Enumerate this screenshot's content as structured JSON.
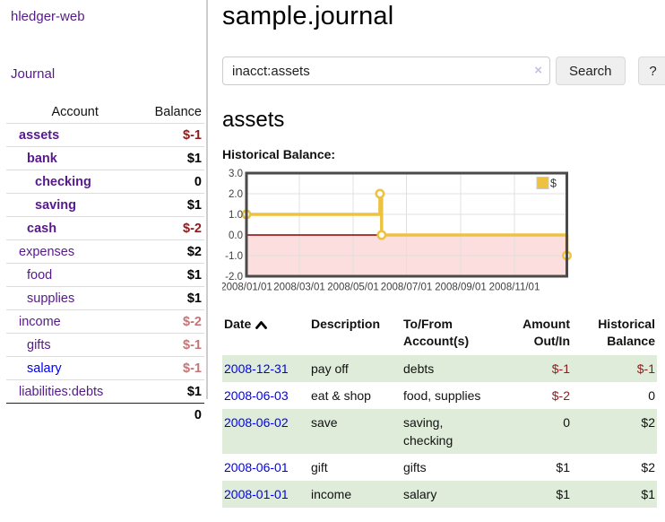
{
  "sidebar": {
    "app_title": "hledger-web",
    "nav_journal": "Journal",
    "accounts": {
      "col_account": "Account",
      "col_balance": "Balance",
      "rows": [
        {
          "name": "assets",
          "balance": "$-1",
          "level": 0,
          "bold": true,
          "balance_style": "negative"
        },
        {
          "name": "bank",
          "balance": "$1",
          "level": 1,
          "bold": true,
          "balance_style": "normal"
        },
        {
          "name": "checking",
          "balance": "0",
          "level": 2,
          "bold": true,
          "balance_style": "normal"
        },
        {
          "name": "saving",
          "balance": "$1",
          "level": 2,
          "bold": true,
          "balance_style": "normal"
        },
        {
          "name": "cash",
          "balance": "$-2",
          "level": 1,
          "bold": true,
          "balance_style": "negative"
        },
        {
          "name": "expenses",
          "balance": "$2",
          "level": 0,
          "bold": false,
          "balance_style": "normal"
        },
        {
          "name": "food",
          "balance": "$1",
          "level": 1,
          "bold": false,
          "balance_style": "normal"
        },
        {
          "name": "supplies",
          "balance": "$1",
          "level": 1,
          "bold": false,
          "balance_style": "normal"
        },
        {
          "name": "income",
          "balance": "$-2",
          "level": 0,
          "bold": false,
          "balance_style": "negative-muted"
        },
        {
          "name": "gifts",
          "balance": "$-1",
          "level": 1,
          "bold": false,
          "balance_style": "negative-muted"
        },
        {
          "name": "salary",
          "balance": "$-1",
          "level": 1,
          "bold": false,
          "balance_style": "negative-muted",
          "link_color": "blue"
        },
        {
          "name": "liabilities:debts",
          "balance": "$1",
          "level": 0,
          "bold": false,
          "balance_style": "normal"
        }
      ],
      "total": "0"
    }
  },
  "main": {
    "title": "sample.journal",
    "search": {
      "value": "inacct:assets",
      "clear_icon": "×",
      "search_button": "Search",
      "help_button": "?"
    },
    "account_heading": "assets",
    "chart_label": "Historical Balance:"
  },
  "chart_data": {
    "type": "line",
    "style": "step",
    "series": [
      {
        "name": "$",
        "color": "#edc240",
        "points": [
          [
            "2008-01-01",
            1
          ],
          [
            "2008-06-01",
            2
          ],
          [
            "2008-06-03",
            0
          ],
          [
            "2008-12-31",
            -1
          ]
        ]
      }
    ],
    "yticks": [
      "3.0",
      "2.0",
      "1.0",
      "0.0",
      "-1.0",
      "-2.0"
    ],
    "xticks": [
      "2008/01/01",
      "2008/03/01",
      "2008/05/01",
      "2008/07/01",
      "2008/09/01",
      "2008/11/01"
    ],
    "ylim": [
      -2,
      3
    ],
    "xrange": [
      "2008-01-01",
      "2008-12-31"
    ],
    "grid": true,
    "legend_position": "top-right",
    "negative_region_color": "#fcdede",
    "zero_line_color": "#8b0000"
  },
  "register": {
    "sort": "date ascending",
    "headers": {
      "date": "Date",
      "description": "Description",
      "account_line1": "To/From",
      "account_line2": "Account(s)",
      "amount_line1": "Amount",
      "amount_line2": "Out/In",
      "balance_line1": "Historical",
      "balance_line2": "Balance"
    },
    "rows": [
      {
        "date": "2008-12-31",
        "description": "pay off",
        "accounts": "debts",
        "amount": "$-1",
        "balance": "$-1"
      },
      {
        "date": "2008-06-03",
        "description": "eat & shop",
        "accounts": "food, supplies",
        "amount": "$-2",
        "balance": "0"
      },
      {
        "date": "2008-06-02",
        "description": "save",
        "accounts": "saving,\nchecking",
        "amount": "0",
        "balance": "$2"
      },
      {
        "date": "2008-06-01",
        "description": "gift",
        "accounts": "gifts",
        "amount": "$1",
        "balance": "$2"
      },
      {
        "date": "2008-01-01",
        "description": "income",
        "accounts": "salary",
        "amount": "$1",
        "balance": "$1"
      }
    ]
  },
  "colors": {
    "link_purple": "#551a8b",
    "link_blue": "#0000ee",
    "negative": "#8e1b1b",
    "negative_muted": "#c57575",
    "row_stripe_green": "#deecd9",
    "chart_series": "#edc240"
  }
}
